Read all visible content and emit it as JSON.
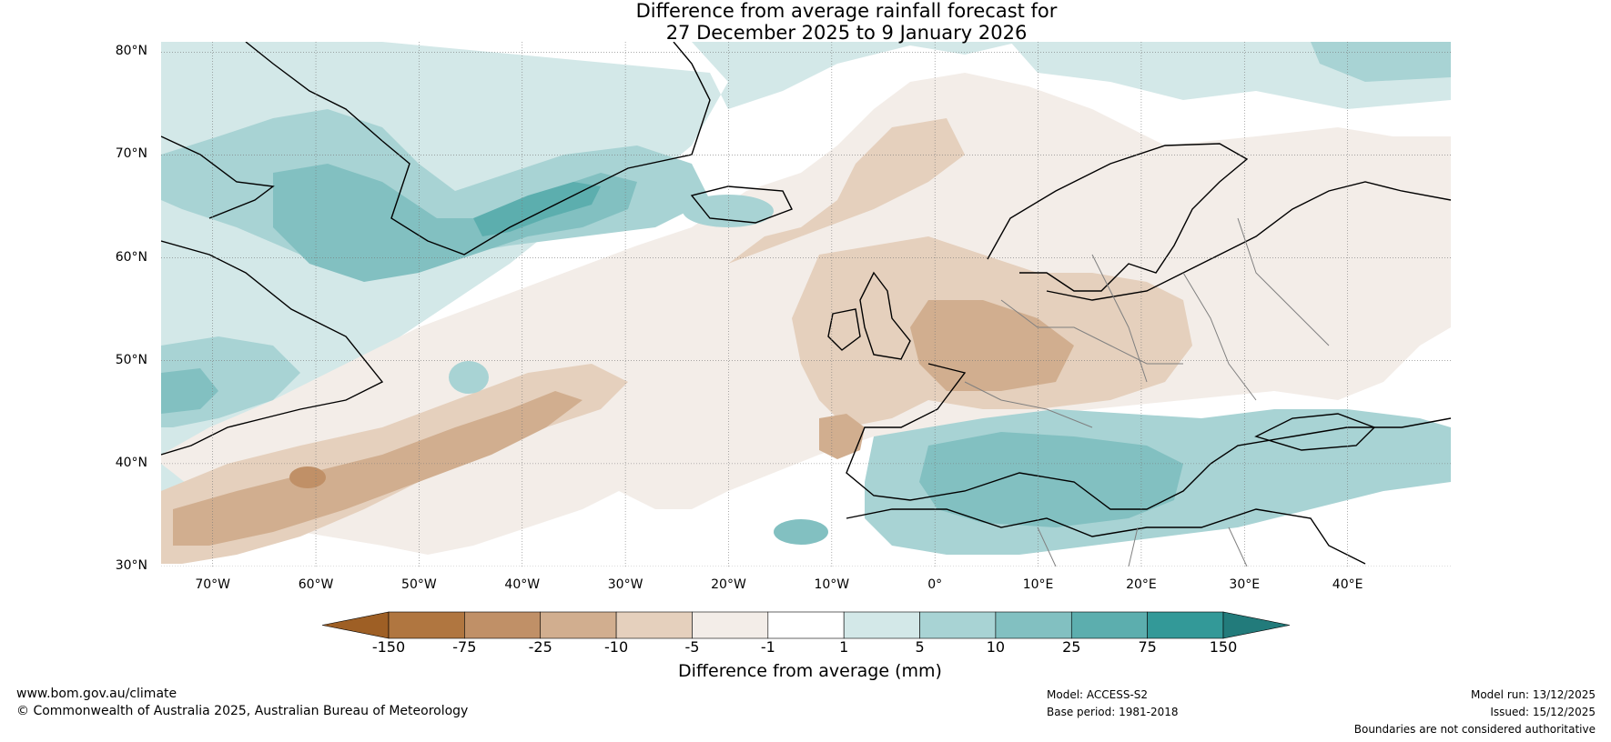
{
  "title": {
    "line1": "Difference from average rainfall forecast for",
    "line2": "27 December 2025 to 9 January 2026"
  },
  "map": {
    "lon_range": [
      -75,
      50
    ],
    "lat_range": [
      30,
      81
    ],
    "lat_ticks": [
      "80°N",
      "70°N",
      "60°N",
      "50°N",
      "40°N",
      "30°N"
    ],
    "lon_ticks": [
      "70°W",
      "60°W",
      "50°W",
      "40°W",
      "30°W",
      "20°W",
      "10°W",
      "0°",
      "10°E",
      "20°E",
      "30°E",
      "40°E"
    ],
    "gridlines": true
  },
  "colorbar": {
    "title": "Difference from average (mm)",
    "tick_labels": [
      "-150",
      "-75",
      "-25",
      "-10",
      "-5",
      "-1",
      "1",
      "5",
      "10",
      "25",
      "75",
      "150"
    ],
    "colors": [
      "#9e5f25",
      "#b07640",
      "#c09067",
      "#d1ae8f",
      "#e5d0bd",
      "#f3ede8",
      "#ffffff",
      "#d3e8e8",
      "#a8d3d4",
      "#82c0c1",
      "#5caeae",
      "#339998",
      "#227b7b"
    ]
  },
  "footer": {
    "website": "www.bom.gov.au/climate",
    "copyright": "© Commonwealth of Australia 2025, Australian Bureau of Meteorology",
    "model": "Model: ACCESS-S2",
    "base_period": "Base period: 1981-2018",
    "model_run": "Model run: 13/12/2025",
    "issued": "Issued: 15/12/2025",
    "disclaimer": "Boundaries are not considered authoritative"
  }
}
